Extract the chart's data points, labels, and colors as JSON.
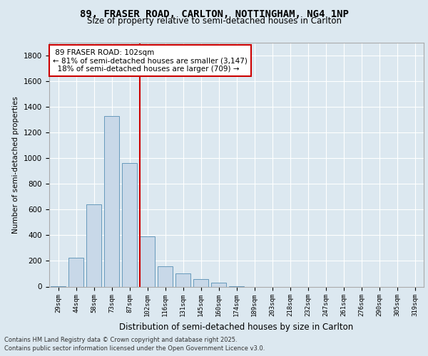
{
  "title_line1": "89, FRASER ROAD, CARLTON, NOTTINGHAM, NG4 1NP",
  "title_line2": "Size of property relative to semi-detached houses in Carlton",
  "xlabel": "Distribution of semi-detached houses by size in Carlton",
  "ylabel": "Number of semi-detached properties",
  "categories": [
    "29sqm",
    "44sqm",
    "58sqm",
    "73sqm",
    "87sqm",
    "102sqm",
    "116sqm",
    "131sqm",
    "145sqm",
    "160sqm",
    "174sqm",
    "189sqm",
    "203sqm",
    "218sqm",
    "232sqm",
    "247sqm",
    "261sqm",
    "276sqm",
    "290sqm",
    "305sqm",
    "319sqm"
  ],
  "values": [
    5,
    225,
    640,
    1330,
    960,
    390,
    160,
    100,
    60,
    30,
    5,
    0,
    0,
    0,
    0,
    0,
    0,
    0,
    0,
    0,
    0
  ],
  "bar_color": "#c8d8e8",
  "bar_edge_color": "#6699bb",
  "property_label": "89 FRASER ROAD: 102sqm",
  "prop_category": "102sqm",
  "pct_smaller": 81,
  "pct_smaller_n": 3147,
  "pct_larger": 18,
  "pct_larger_n": 709,
  "vline_color": "#cc0000",
  "ylim": [
    0,
    1900
  ],
  "yticks": [
    0,
    200,
    400,
    600,
    800,
    1000,
    1200,
    1400,
    1600,
    1800
  ],
  "background_color": "#dce8f0",
  "plot_background": "#dce8f0",
  "grid_color": "#ffffff",
  "footnote_line1": "Contains HM Land Registry data © Crown copyright and database right 2025.",
  "footnote_line2": "Contains public sector information licensed under the Open Government Licence v3.0."
}
